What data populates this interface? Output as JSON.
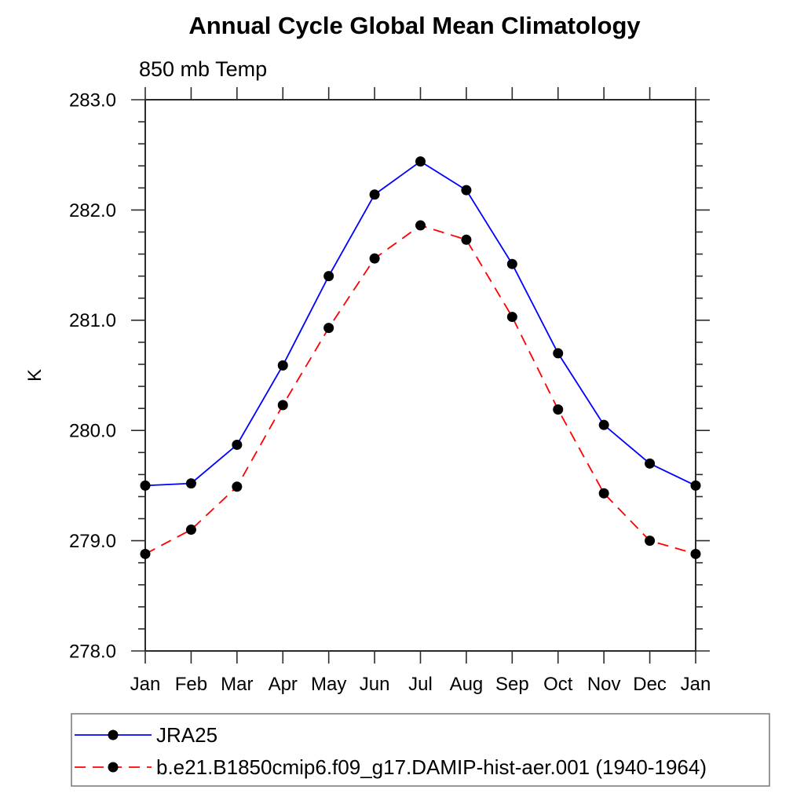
{
  "window": {
    "background": "#ffffff"
  },
  "chart_data": {
    "type": "line",
    "title": "Annual Cycle Global Mean Climatology",
    "subtitle": "850 mb Temp",
    "xlabel": "",
    "ylabel": "K",
    "ylim": [
      278.0,
      283.0
    ],
    "ytick_interval": 1.0,
    "yminor_interval": 0.2,
    "ytick_labels": [
      "278.0",
      "279.0",
      "280.0",
      "281.0",
      "282.0",
      "283.0"
    ],
    "categories": [
      "Jan",
      "Feb",
      "Mar",
      "Apr",
      "May",
      "Jun",
      "Jul",
      "Aug",
      "Sep",
      "Oct",
      "Nov",
      "Dec",
      "Jan"
    ],
    "grid": false,
    "legend_position": "bottom-left",
    "marker": {
      "shape": "filled-circle",
      "color": "#000000"
    },
    "series": [
      {
        "name": "JRA25",
        "color": "#0000ff",
        "line_style": "solid",
        "values": [
          279.5,
          279.52,
          279.87,
          280.59,
          281.4,
          282.14,
          282.44,
          282.18,
          281.51,
          280.7,
          280.05,
          279.7,
          279.5
        ]
      },
      {
        "name": "b.e21.B1850cmip6.f09_g17.DAMIP-hist-aer.001 (1940-1964)",
        "color": "#ff0000",
        "line_style": "dashed",
        "values": [
          278.88,
          279.1,
          279.49,
          280.23,
          280.93,
          281.56,
          281.86,
          281.73,
          281.03,
          280.19,
          279.43,
          279.0,
          278.88
        ]
      }
    ]
  },
  "colors": {
    "axis": "#2b2b2b",
    "legend_border": "#777777",
    "text": "#000000"
  }
}
